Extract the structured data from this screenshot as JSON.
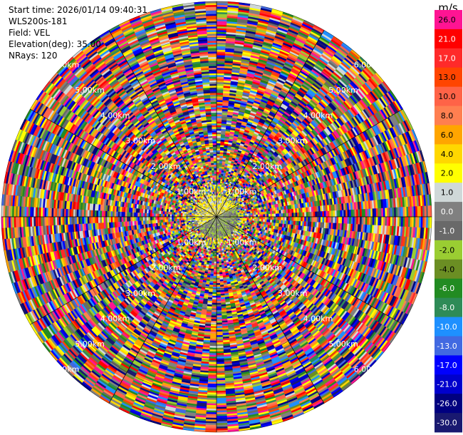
{
  "header": {
    "start_time": "Start time: 2026/01/14 09:40:31",
    "instrument": "WLS200s-181",
    "field": "Field: VEL",
    "elevation": "Elevation(deg): 35.00",
    "nrays": "NRays: 120"
  },
  "chart_data": {
    "type": "heatmap",
    "projection": "polar-ppi",
    "field": "VEL",
    "elevation_deg": 35.0,
    "nrays": 120,
    "range_rings_km": [
      1.0,
      2.0,
      3.0,
      4.0,
      5.0,
      6.0
    ],
    "range_labels": [
      "1.00km",
      "2.00km",
      "3.00km",
      "4.00km",
      "5.00km",
      "6.00km"
    ],
    "colorbar": {
      "unit": "m/s",
      "tick_labels": [
        "26.0",
        "21.0",
        "17.0",
        "13.0",
        "10.0",
        "8.0",
        "6.0",
        "4.0",
        "2.0",
        "1.0",
        "0.0",
        "-1.0",
        "-2.0",
        "-4.0",
        "-6.0",
        "-8.0",
        "-10.0",
        "-13.0",
        "-17.0",
        "-21.0",
        "-26.0",
        "-30.0"
      ],
      "colors": [
        "#ff1493",
        "#ff0000",
        "#ff2a2a",
        "#ff4500",
        "#ff6347",
        "#ff7f50",
        "#ffa500",
        "#ffd700",
        "#ffff00",
        "#cfd8d8",
        "#808080",
        "#696969",
        "#9acd32",
        "#6b8e23",
        "#228b22",
        "#2e8b57",
        "#1e90ff",
        "#4169e1",
        "#0000ff",
        "#0000cd",
        "#000080",
        "#191970"
      ]
    },
    "inner_core": {
      "radius_km": 1.0,
      "dominant_values_ms": [
        1.0,
        2.0,
        4.0,
        0.0,
        -1.0,
        -2.0
      ]
    }
  }
}
